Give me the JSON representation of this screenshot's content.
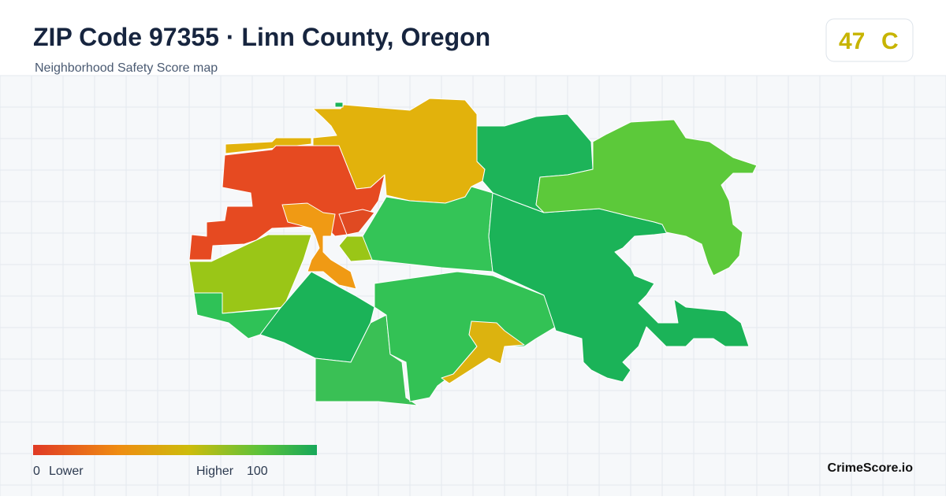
{
  "header": {
    "title": "ZIP Code 97355 · Linn County, Oregon",
    "subtitle": "Neighborhood Safety Score map"
  },
  "score": {
    "value": 47,
    "grade": "C"
  },
  "legend": {
    "min": 0,
    "min_label": "Lower",
    "max_label": "Higher",
    "max": 100
  },
  "brand": "CrimeScore.io"
}
